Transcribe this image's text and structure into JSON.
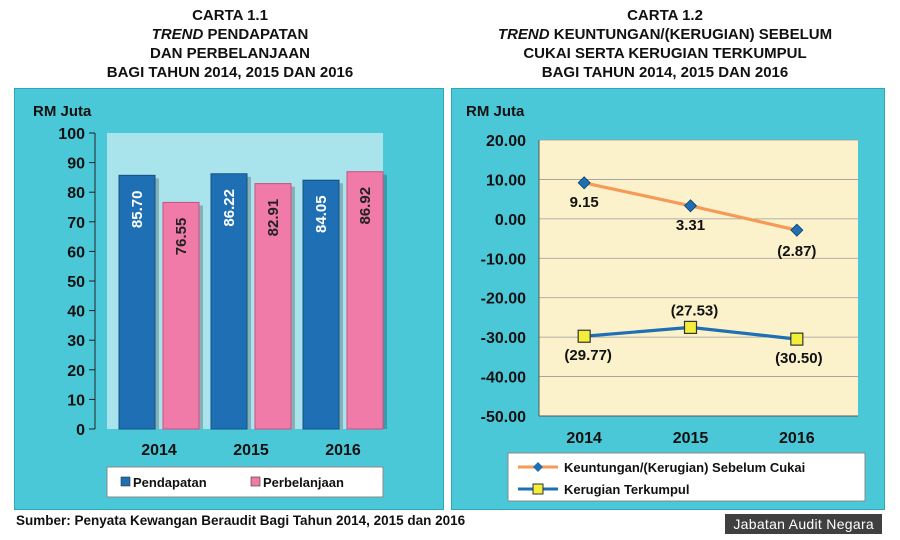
{
  "chart1": {
    "title_line1": "CARTA 1.1",
    "title_line2_italic": "TREND",
    "title_line2_rest": " PENDAPATAN",
    "title_line3": "DAN PERBELANJAAN",
    "title_line4": "BAGI TAHUN 2014, 2015 DAN 2016"
  },
  "chart2": {
    "title_line1": "CARTA 1.2",
    "title_line2_italic": "TREND",
    "title_line2_rest": " KEUNTUNGAN/(KERUGIAN) SEBELUM",
    "title_line3": "CUKAI SERTA KERUGIAN TERKUMPUL",
    "title_line4": "BAGI TAHUN 2014, 2015 DAN 2016"
  },
  "chart_data": [
    {
      "type": "bar",
      "title": "TREND PENDAPATAN DAN PERBELANJAAN BAGI TAHUN 2014, 2015 DAN 2016",
      "ylabel": "RM Juta",
      "categories": [
        "2014",
        "2015",
        "2016"
      ],
      "ylim": [
        0,
        100
      ],
      "yticks": [
        "0",
        "10",
        "20",
        "30",
        "40",
        "50",
        "60",
        "70",
        "80",
        "90",
        "100"
      ],
      "series": [
        {
          "name": "Pendapatan",
          "color": "#1f6fb5",
          "values": [
            85.7,
            86.22,
            84.05
          ],
          "labels": [
            "85.70",
            "86.22",
            "84.05"
          ]
        },
        {
          "name": "Perbelanjaan",
          "color": "#f07aa8",
          "values": [
            76.55,
            82.91,
            86.92
          ],
          "labels": [
            "76.55",
            "82.91",
            "86.92"
          ]
        }
      ]
    },
    {
      "type": "line",
      "title": "TREND KEUNTUNGAN/(KERUGIAN) SEBELUM CUKAI SERTA KERUGIAN TERKUMPUL BAGI TAHUN 2014, 2015 DAN 2016",
      "ylabel": "RM Juta",
      "categories": [
        "2014",
        "2015",
        "2016"
      ],
      "ylim": [
        -50,
        20
      ],
      "yticks": [
        "-50.00",
        "-40.00",
        "-30.00",
        "-20.00",
        "-10.00",
        "0.00",
        "10.00",
        "20.00"
      ],
      "series": [
        {
          "name": "Keuntungan/(Kerugian) Sebelum Cukai",
          "color": "#f59a57",
          "values": [
            9.15,
            3.31,
            -2.87
          ],
          "labels": [
            "9.15",
            "3.31",
            "(2.87)"
          ]
        },
        {
          "name": "Kerugian Terkumpul",
          "color": "#1f6fb5",
          "values": [
            -29.77,
            -27.53,
            -30.5
          ],
          "labels": [
            "(29.77)",
            "(27.53)",
            "(30.50)"
          ]
        }
      ]
    }
  ],
  "footer": {
    "source": "Sumber: Penyata Kewangan Beraudit Bagi Tahun 2014, 2015 dan 2016",
    "watermark": "Jabatan Audit Negara"
  }
}
